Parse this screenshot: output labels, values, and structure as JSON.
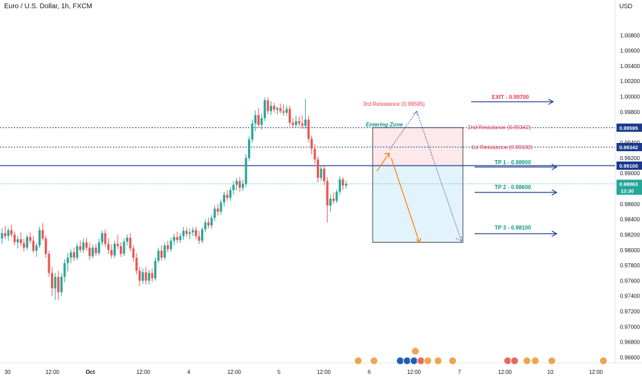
{
  "header": {
    "title": "Euro / U.S. Dollar, 1h, FXCM",
    "currency": "USD"
  },
  "colors": {
    "up": "#26a69a",
    "down": "#ef5350",
    "level_line": "#1a3a8f",
    "annotation_red": "#f23645",
    "annotation_teal": "#089981",
    "arrow_orange": "#f57c00",
    "zone_red": "#fde8ea",
    "zone_blue": "#e3f3fb"
  },
  "chart_data": {
    "type": "candlestick",
    "symbol": "EURUSD",
    "timeframe": "1h",
    "ylim": [
      0.965,
      1.008
    ],
    "yticks": [
      "1.00800",
      "1.00600",
      "1.00400",
      "1.00200",
      "1.00000",
      "0.99800",
      "0.99600",
      "0.99400",
      "0.99200",
      "0.99000",
      "0.98800",
      "0.98600",
      "0.98400",
      "0.98200",
      "0.98000",
      "0.97800",
      "0.97600",
      "0.97400",
      "0.97200",
      "0.97000",
      "0.96800",
      "0.96600"
    ],
    "xticks": [
      "30",
      "12:00",
      "Oct",
      "12:00",
      "4",
      "12:00",
      "5",
      "12:00",
      "6",
      "12:00",
      "7",
      "12:00",
      "10",
      "12:00"
    ],
    "candles": [
      [
        0.9815,
        0.9828,
        0.9808,
        0.9822
      ],
      [
        0.9822,
        0.9831,
        0.9814,
        0.9818
      ],
      [
        0.9818,
        0.9829,
        0.9812,
        0.9826
      ],
      [
        0.9826,
        0.9833,
        0.9817,
        0.982
      ],
      [
        0.982,
        0.9824,
        0.9806,
        0.981
      ],
      [
        0.981,
        0.9818,
        0.9802,
        0.9814
      ],
      [
        0.9814,
        0.9823,
        0.9805,
        0.9809
      ],
      [
        0.9809,
        0.9815,
        0.9798,
        0.9803
      ],
      [
        0.9803,
        0.982,
        0.98,
        0.9817
      ],
      [
        0.9817,
        0.9823,
        0.9808,
        0.9812
      ],
      [
        0.9812,
        0.9818,
        0.9796,
        0.9799
      ],
      [
        0.9799,
        0.9809,
        0.9791,
        0.9806
      ],
      [
        0.9806,
        0.983,
        0.9803,
        0.9826
      ],
      [
        0.9826,
        0.9835,
        0.9812,
        0.9815
      ],
      [
        0.9815,
        0.9819,
        0.979,
        0.9795
      ],
      [
        0.9795,
        0.9799,
        0.9765,
        0.977
      ],
      [
        0.977,
        0.9778,
        0.974,
        0.975
      ],
      [
        0.975,
        0.977,
        0.9735,
        0.9765
      ],
      [
        0.9765,
        0.9773,
        0.9735,
        0.9745
      ],
      [
        0.9745,
        0.977,
        0.974,
        0.9765
      ],
      [
        0.9765,
        0.9788,
        0.9758,
        0.9783
      ],
      [
        0.9783,
        0.9796,
        0.9772,
        0.979
      ],
      [
        0.979,
        0.9801,
        0.9783,
        0.9797
      ],
      [
        0.9797,
        0.9803,
        0.9786,
        0.979
      ],
      [
        0.979,
        0.9809,
        0.9787,
        0.9805
      ],
      [
        0.9805,
        0.9812,
        0.9797,
        0.98
      ],
      [
        0.98,
        0.9815,
        0.9796,
        0.981
      ],
      [
        0.981,
        0.9816,
        0.9799,
        0.9803
      ],
      [
        0.9803,
        0.981,
        0.9787,
        0.9792
      ],
      [
        0.9792,
        0.9807,
        0.9789,
        0.9803
      ],
      [
        0.9803,
        0.9808,
        0.9792,
        0.9796
      ],
      [
        0.9796,
        0.9815,
        0.9793,
        0.981
      ],
      [
        0.981,
        0.9825,
        0.9806,
        0.9822
      ],
      [
        0.9822,
        0.9827,
        0.9804,
        0.9808
      ],
      [
        0.9808,
        0.9815,
        0.9795,
        0.98
      ],
      [
        0.98,
        0.9807,
        0.9789,
        0.9793
      ],
      [
        0.9793,
        0.9812,
        0.979,
        0.9808
      ],
      [
        0.9808,
        0.982,
        0.9801,
        0.9805
      ],
      [
        0.9805,
        0.981,
        0.9791,
        0.9795
      ],
      [
        0.9795,
        0.9815,
        0.9792,
        0.9811
      ],
      [
        0.9811,
        0.982,
        0.9806,
        0.9816
      ],
      [
        0.9816,
        0.9822,
        0.9798,
        0.9802
      ],
      [
        0.9802,
        0.9806,
        0.9785,
        0.979
      ],
      [
        0.979,
        0.9796,
        0.9768,
        0.9773
      ],
      [
        0.9773,
        0.9778,
        0.9753,
        0.976
      ],
      [
        0.976,
        0.9776,
        0.9756,
        0.9771
      ],
      [
        0.9771,
        0.9778,
        0.9755,
        0.976
      ],
      [
        0.976,
        0.9774,
        0.9755,
        0.977
      ],
      [
        0.977,
        0.9776,
        0.9758,
        0.9763
      ],
      [
        0.9763,
        0.979,
        0.976,
        0.9786
      ],
      [
        0.9786,
        0.9803,
        0.9783,
        0.9799
      ],
      [
        0.9799,
        0.9806,
        0.9786,
        0.979
      ],
      [
        0.979,
        0.981,
        0.9787,
        0.9806
      ],
      [
        0.9806,
        0.9812,
        0.9797,
        0.9801
      ],
      [
        0.9801,
        0.9816,
        0.9798,
        0.9812
      ],
      [
        0.9812,
        0.9821,
        0.9806,
        0.9817
      ],
      [
        0.9817,
        0.9824,
        0.9809,
        0.9813
      ],
      [
        0.9813,
        0.9822,
        0.9809,
        0.9818
      ],
      [
        0.9818,
        0.983,
        0.9813,
        0.9825
      ],
      [
        0.9825,
        0.9829,
        0.9817,
        0.9821
      ],
      [
        0.9821,
        0.9828,
        0.9814,
        0.9823
      ],
      [
        0.9823,
        0.983,
        0.9818,
        0.9826
      ],
      [
        0.9826,
        0.983,
        0.9814,
        0.9818
      ],
      [
        0.9818,
        0.9825,
        0.9808,
        0.9812
      ],
      [
        0.9812,
        0.983,
        0.9809,
        0.9827
      ],
      [
        0.9827,
        0.984,
        0.9823,
        0.9836
      ],
      [
        0.9836,
        0.9842,
        0.9828,
        0.9832
      ],
      [
        0.9832,
        0.9846,
        0.9828,
        0.9842
      ],
      [
        0.9842,
        0.9858,
        0.9838,
        0.9854
      ],
      [
        0.9854,
        0.986,
        0.9845,
        0.985
      ],
      [
        0.985,
        0.9866,
        0.9846,
        0.9862
      ],
      [
        0.9862,
        0.9876,
        0.9857,
        0.9872
      ],
      [
        0.9872,
        0.9878,
        0.9864,
        0.9868
      ],
      [
        0.9868,
        0.9882,
        0.9864,
        0.9878
      ],
      [
        0.9878,
        0.989,
        0.9872,
        0.9885
      ],
      [
        0.9885,
        0.9894,
        0.9878,
        0.989
      ],
      [
        0.989,
        0.9895,
        0.9876,
        0.9881
      ],
      [
        0.9881,
        0.9892,
        0.9877,
        0.9886
      ],
      [
        0.9886,
        0.9925,
        0.9882,
        0.992
      ],
      [
        0.992,
        0.9948,
        0.9916,
        0.9944
      ],
      [
        0.9944,
        0.997,
        0.994,
        0.9965
      ],
      [
        0.9965,
        0.9982,
        0.9955,
        0.9976
      ],
      [
        0.9976,
        0.9985,
        0.996,
        0.9963
      ],
      [
        0.9963,
        0.9978,
        0.9957,
        0.9972
      ],
      [
        0.9972,
        0.9999,
        0.9968,
        0.9995
      ],
      [
        0.9995,
        0.9999,
        0.9977,
        0.9981
      ],
      [
        0.9981,
        0.9994,
        0.9976,
        0.9988
      ],
      [
        0.9988,
        0.9992,
        0.9979,
        0.9983
      ],
      [
        0.9983,
        0.9987,
        0.9977,
        0.9985
      ],
      [
        0.9985,
        0.9991,
        0.9978,
        0.9981
      ],
      [
        0.9981,
        0.999,
        0.9975,
        0.9979
      ],
      [
        0.9979,
        0.9988,
        0.9975,
        0.9984
      ],
      [
        0.9984,
        0.9988,
        0.9962,
        0.9966
      ],
      [
        0.9966,
        0.9972,
        0.996,
        0.9963
      ],
      [
        0.9963,
        0.9975,
        0.9959,
        0.9968
      ],
      [
        0.9968,
        0.9974,
        0.9961,
        0.9965
      ],
      [
        0.9965,
        0.9976,
        0.9958,
        0.9962
      ],
      [
        0.9962,
        0.9997,
        0.9958,
        0.997
      ],
      [
        0.997,
        0.9975,
        0.994,
        0.9945
      ],
      [
        0.9945,
        0.9949,
        0.9925,
        0.9932
      ],
      [
        0.9932,
        0.9938,
        0.9912,
        0.9918
      ],
      [
        0.9918,
        0.9922,
        0.9888,
        0.9894
      ],
      [
        0.9894,
        0.9911,
        0.989,
        0.9906
      ],
      [
        0.9906,
        0.9911,
        0.9885,
        0.989
      ],
      [
        0.989,
        0.9895,
        0.9836,
        0.9858
      ],
      [
        0.9858,
        0.9872,
        0.985,
        0.9867
      ],
      [
        0.9867,
        0.9875,
        0.986,
        0.9864
      ],
      [
        0.9864,
        0.9879,
        0.9861,
        0.9876
      ],
      [
        0.9876,
        0.9896,
        0.9872,
        0.9892
      ],
      [
        0.9892,
        0.9895,
        0.9878,
        0.9884
      ],
      [
        0.9884,
        0.989,
        0.988,
        0.9886
      ]
    ],
    "price_levels": [
      {
        "value": 0.99595,
        "label": "0.99595",
        "style": "dotted"
      },
      {
        "value": 0.99342,
        "label": "0.99342",
        "style": "dotted"
      },
      {
        "value": 0.991,
        "label": "0.99100",
        "style": "solid"
      }
    ],
    "current_price": {
      "value": 0.98863,
      "label": "0.98863",
      "countdown": "13:30"
    },
    "annotations": {
      "resistance3": "3rd Resistance (0.99595)",
      "resistance2": "2nd Resistance (0.99342)",
      "resistance1": "1st Resistance (0.99100)",
      "entering_zone": "Entering Zone",
      "exit": "EXIT - 0.99700",
      "tp1": "TP 1 - 0.98900",
      "tp2": "TP 2 - 0.98600",
      "tp3": "TP 3 - 0.98100"
    },
    "grid": false
  }
}
